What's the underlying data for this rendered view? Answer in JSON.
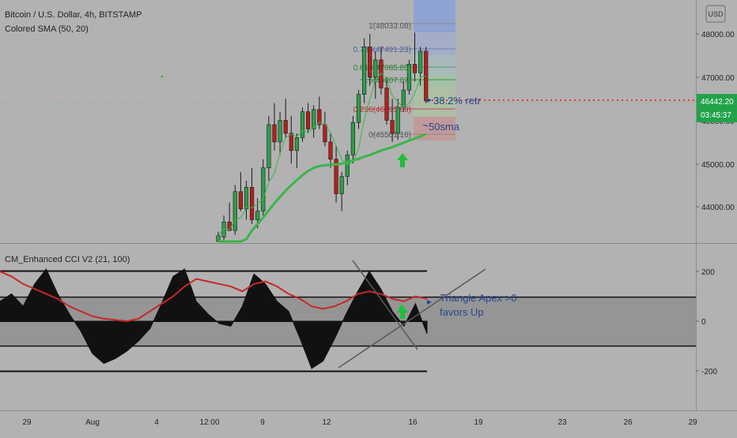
{
  "header": {
    "symbol_line": "Bitcoin / U.S. Dollar, 4h, BITSTAMP",
    "indicator_line": "Colored SMA (50, 20)",
    "currency_button": "USD"
  },
  "price_axis": {
    "ticks": [
      "48000.00",
      "47000.00",
      "46000.00",
      "45000.00",
      "44000.00"
    ],
    "last_price": "46442.20",
    "countdown": "03:45:37",
    "sma_label": "46000.00"
  },
  "fib_labels": {
    "level_1": "1(48033.08)",
    "level_0786": "0.786(47491.23)",
    "level_0618": "0.618(47085.85)",
    "level_05": "0.5(46807.07)",
    "level_0236": "0.236(46095.09)",
    "level_0": "0(45501.16)"
  },
  "annotations": {
    "retr": "38.2% retr",
    "sma": "50sma",
    "triangle_line1": "Triangle Apex >0",
    "triangle_line2": "favors Up"
  },
  "cci": {
    "title": "CM_Enhanced CCI V2 (21, 100)",
    "axis_ticks": [
      "200",
      "0",
      "-200"
    ]
  },
  "time_axis": {
    "ticks": [
      "29",
      "Aug",
      "4",
      "12:00",
      "9",
      "12",
      "16",
      "19",
      "23",
      "26",
      "29"
    ]
  },
  "colors": {
    "bull": "#2e9e4a",
    "bear": "#b3201c",
    "sma": "#3ab54a",
    "cci_line": "#c62828",
    "cci_area": "#111111",
    "retr_line": "#e53935",
    "annotation_text": "#25478f",
    "arrow": "#1fbf3a"
  },
  "chart_data": [
    {
      "type": "candlestick",
      "title": "Bitcoin / U.S. Dollar, 4h, BITSTAMP",
      "ylim": [
        43100,
        48800
      ],
      "candles": [
        {
          "o": 43100,
          "h": 43420,
          "l": 42900,
          "c": 43330
        },
        {
          "o": 43300,
          "h": 43800,
          "l": 43150,
          "c": 43650
        },
        {
          "o": 43650,
          "h": 44100,
          "l": 43500,
          "c": 43450
        },
        {
          "o": 43450,
          "h": 44500,
          "l": 43350,
          "c": 44350
        },
        {
          "o": 44350,
          "h": 44800,
          "l": 43900,
          "c": 43950
        },
        {
          "o": 43950,
          "h": 44600,
          "l": 43700,
          "c": 44450
        },
        {
          "o": 44450,
          "h": 44900,
          "l": 43600,
          "c": 43700
        },
        {
          "o": 43700,
          "h": 44200,
          "l": 43500,
          "c": 43900
        },
        {
          "o": 43900,
          "h": 45100,
          "l": 43800,
          "c": 44900
        },
        {
          "o": 44900,
          "h": 46100,
          "l": 44600,
          "c": 45900
        },
        {
          "o": 45900,
          "h": 46400,
          "l": 45300,
          "c": 45500
        },
        {
          "o": 45500,
          "h": 46200,
          "l": 45200,
          "c": 46000
        },
        {
          "o": 46000,
          "h": 46500,
          "l": 45600,
          "c": 45700
        },
        {
          "o": 45700,
          "h": 46100,
          "l": 45000,
          "c": 45300
        },
        {
          "o": 45300,
          "h": 45700,
          "l": 44900,
          "c": 45600
        },
        {
          "o": 45600,
          "h": 46300,
          "l": 45500,
          "c": 46200
        },
        {
          "o": 46200,
          "h": 46400,
          "l": 45700,
          "c": 45800
        },
        {
          "o": 45800,
          "h": 46350,
          "l": 45600,
          "c": 46250
        },
        {
          "o": 46250,
          "h": 46550,
          "l": 45800,
          "c": 45900
        },
        {
          "o": 45900,
          "h": 46200,
          "l": 45400,
          "c": 45500
        },
        {
          "o": 45500,
          "h": 45700,
          "l": 44900,
          "c": 45100
        },
        {
          "o": 45100,
          "h": 45400,
          "l": 44100,
          "c": 44300
        },
        {
          "o": 44300,
          "h": 44800,
          "l": 43900,
          "c": 44700
        },
        {
          "o": 44700,
          "h": 45300,
          "l": 44500,
          "c": 45200
        },
        {
          "o": 45200,
          "h": 46100,
          "l": 45000,
          "c": 45950
        },
        {
          "o": 45950,
          "h": 46700,
          "l": 45800,
          "c": 46600
        },
        {
          "o": 46600,
          "h": 47900,
          "l": 46400,
          "c": 47700
        },
        {
          "o": 47700,
          "h": 48000,
          "l": 46800,
          "c": 47000
        },
        {
          "o": 47000,
          "h": 47600,
          "l": 46500,
          "c": 47400
        },
        {
          "o": 47400,
          "h": 47700,
          "l": 46600,
          "c": 46750
        },
        {
          "o": 46750,
          "h": 47000,
          "l": 45900,
          "c": 46000
        },
        {
          "o": 46000,
          "h": 46500,
          "l": 45500,
          "c": 45700
        },
        {
          "o": 45700,
          "h": 46500,
          "l": 45550,
          "c": 46300
        },
        {
          "o": 46300,
          "h": 46900,
          "l": 46200,
          "c": 46700
        },
        {
          "o": 46700,
          "h": 47400,
          "l": 46600,
          "c": 47300
        },
        {
          "o": 47300,
          "h": 48030,
          "l": 46900,
          "c": 47100
        },
        {
          "o": 47100,
          "h": 47700,
          "l": 46800,
          "c": 47600
        },
        {
          "o": 47600,
          "h": 47700,
          "l": 46400,
          "c": 46450
        }
      ],
      "sma": [
        42800,
        43000,
        43250,
        43500,
        43700,
        43950,
        44150,
        44300,
        44450,
        44620,
        44780,
        44930,
        45070,
        45200,
        45320,
        45430,
        45530,
        45600,
        45640,
        45660,
        45670,
        45680,
        45700,
        45730,
        45770,
        45810,
        45860,
        45900,
        45950,
        46000,
        46040,
        46080,
        46130,
        46180,
        46230,
        46280,
        46330,
        46380
      ]
    },
    {
      "type": "area",
      "title": "CM_Enhanced CCI V2 (21, 100)",
      "ylim": [
        -260,
        260
      ],
      "cci": [
        80,
        110,
        60,
        150,
        210,
        110,
        30,
        -40,
        -130,
        -170,
        -150,
        -120,
        -80,
        -30,
        70,
        180,
        210,
        80,
        30,
        -10,
        -20,
        60,
        190,
        150,
        80,
        40,
        -70,
        -190,
        -160,
        -70,
        30,
        120,
        200,
        130,
        40,
        -20,
        70,
        -50
      ],
      "signal": [
        200,
        180,
        150,
        130,
        110,
        90,
        60,
        40,
        20,
        10,
        5,
        0,
        10,
        40,
        70,
        100,
        140,
        170,
        160,
        150,
        140,
        120,
        150,
        160,
        140,
        110,
        90,
        60,
        50,
        60,
        80,
        110,
        120,
        110,
        90,
        80,
        100,
        90
      ]
    }
  ]
}
